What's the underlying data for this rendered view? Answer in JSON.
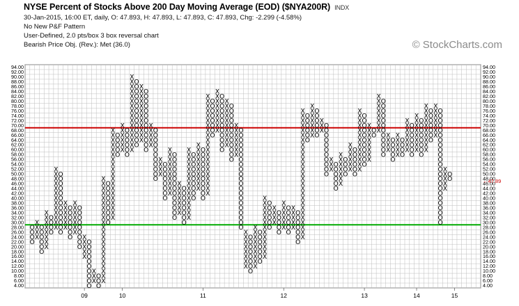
{
  "header": {
    "title": "NYSE Percent of Stocks Above 200 Day Moving Average (EOD) ($NYA200R)",
    "index_tag": "INDX",
    "quote_line": "30-Jan-2015, 16:00 ET, daily, O: 47.893, H: 47.893, L: 47.893, C: 47.893, Chg: -2.299 (-4.58%)",
    "pattern_line": "No New P&F Pattern",
    "scale_line": "User-Defined, 2.0 pts/box 3 box reversal chart",
    "objective_line": "Bearish Price Obj. (Rev.): Met (36.0)",
    "watermark": "© StockCharts.com"
  },
  "chart_data": {
    "type": "point-and-figure",
    "box_size": 2,
    "reversal": 3,
    "ylim": [
      4,
      94
    ],
    "y_ticks": [
      "4.00",
      "6.00",
      "8.00",
      "10.00",
      "12.00",
      "14.00",
      "16.00",
      "18.00",
      "20.00",
      "22.00",
      "24.00",
      "26.00",
      "28.00",
      "30.00",
      "32.00",
      "34.00",
      "36.00",
      "38.00",
      "40.00",
      "42.00",
      "44.00",
      "46.00",
      "48.00",
      "50.00",
      "52.00",
      "54.00",
      "56.00",
      "58.00",
      "60.00",
      "62.00",
      "64.00",
      "66.00",
      "68.00",
      "70.00",
      "72.00",
      "74.00",
      "76.00",
      "78.00",
      "80.00",
      "82.00",
      "84.00",
      "86.00",
      "88.00",
      "90.00",
      "92.00",
      "94.00"
    ],
    "x_tick_labels": [
      {
        "label": "09",
        "column": 11
      },
      {
        "label": "10",
        "column": 19
      },
      {
        "label": "11",
        "column": 36
      },
      {
        "label": "12",
        "column": 53
      },
      {
        "label": "13",
        "column": 70
      },
      {
        "label": "14",
        "column": 81
      },
      {
        "label": "15",
        "column": 89
      }
    ],
    "last_value_label": "47.89",
    "reference_lines": [
      {
        "value": 69,
        "color": "#cc0000"
      },
      {
        "value": 29,
        "color": "#00aa00"
      }
    ],
    "columns": [
      {
        "type": "O",
        "high": 28,
        "low": 22
      },
      {
        "type": "X",
        "high": 30,
        "low": 24
      },
      {
        "type": "O",
        "high": 28,
        "low": 18
      },
      {
        "type": "X",
        "high": 34,
        "low": 20
      },
      {
        "type": "O",
        "high": 32,
        "low": 26
      },
      {
        "type": "X",
        "high": 52,
        "low": 28
      },
      {
        "type": "O",
        "high": 50,
        "low": 26
      },
      {
        "type": "X",
        "high": 38,
        "low": 28
      },
      {
        "type": "O",
        "high": 36,
        "low": 24
      },
      {
        "type": "X",
        "high": 38,
        "low": 26
      },
      {
        "type": "O",
        "high": 36,
        "low": 20
      },
      {
        "type": "X",
        "high": 24,
        "low": 16
      },
      {
        "type": "O",
        "high": 22,
        "low": 4
      },
      {
        "type": "X",
        "high": 10,
        "low": 6
      },
      {
        "type": "O",
        "high": 8,
        "low": 4
      },
      {
        "type": "X",
        "high": 48,
        "low": 6
      },
      {
        "type": "O",
        "high": 46,
        "low": 30
      },
      {
        "type": "X",
        "high": 68,
        "low": 32
      },
      {
        "type": "O",
        "high": 66,
        "low": 58
      },
      {
        "type": "X",
        "high": 70,
        "low": 60
      },
      {
        "type": "O",
        "high": 68,
        "low": 58
      },
      {
        "type": "X",
        "high": 90,
        "low": 60
      },
      {
        "type": "O",
        "high": 88,
        "low": 62
      },
      {
        "type": "X",
        "high": 86,
        "low": 64
      },
      {
        "type": "O",
        "high": 84,
        "low": 60
      },
      {
        "type": "X",
        "high": 70,
        "low": 62
      },
      {
        "type": "O",
        "high": 68,
        "low": 48
      },
      {
        "type": "X",
        "high": 56,
        "low": 50
      },
      {
        "type": "O",
        "high": 54,
        "low": 40
      },
      {
        "type": "X",
        "high": 60,
        "low": 42
      },
      {
        "type": "O",
        "high": 58,
        "low": 32
      },
      {
        "type": "X",
        "high": 46,
        "low": 34
      },
      {
        "type": "O",
        "high": 44,
        "low": 30
      },
      {
        "type": "X",
        "high": 60,
        "low": 32
      },
      {
        "type": "O",
        "high": 58,
        "low": 40
      },
      {
        "type": "X",
        "high": 62,
        "low": 44
      },
      {
        "type": "O",
        "high": 60,
        "low": 40
      },
      {
        "type": "X",
        "high": 82,
        "low": 42
      },
      {
        "type": "O",
        "high": 80,
        "low": 66
      },
      {
        "type": "X",
        "high": 84,
        "low": 68
      },
      {
        "type": "O",
        "high": 82,
        "low": 60
      },
      {
        "type": "X",
        "high": 80,
        "low": 62
      },
      {
        "type": "O",
        "high": 78,
        "low": 56
      },
      {
        "type": "X",
        "high": 70,
        "low": 58
      },
      {
        "type": "O",
        "high": 68,
        "low": 28
      },
      {
        "type": "X",
        "high": 26,
        "low": 12
      },
      {
        "type": "O",
        "high": 24,
        "low": 10
      },
      {
        "type": "X",
        "high": 28,
        "low": 12
      },
      {
        "type": "O",
        "high": 26,
        "low": 14
      },
      {
        "type": "X",
        "high": 40,
        "low": 16
      },
      {
        "type": "O",
        "high": 38,
        "low": 28
      },
      {
        "type": "X",
        "high": 36,
        "low": 30
      },
      {
        "type": "O",
        "high": 34,
        "low": 26
      },
      {
        "type": "X",
        "high": 38,
        "low": 28
      },
      {
        "type": "O",
        "high": 36,
        "low": 26
      },
      {
        "type": "X",
        "high": 36,
        "low": 28
      },
      {
        "type": "O",
        "high": 34,
        "low": 22
      },
      {
        "type": "X",
        "high": 76,
        "low": 24
      },
      {
        "type": "O",
        "high": 74,
        "low": 64
      },
      {
        "type": "X",
        "high": 78,
        "low": 66
      },
      {
        "type": "O",
        "high": 76,
        "low": 66
      },
      {
        "type": "X",
        "high": 72,
        "low": 68
      },
      {
        "type": "O",
        "high": 70,
        "low": 50
      },
      {
        "type": "X",
        "high": 56,
        "low": 52
      },
      {
        "type": "O",
        "high": 54,
        "low": 44
      },
      {
        "type": "X",
        "high": 58,
        "low": 46
      },
      {
        "type": "O",
        "high": 56,
        "low": 50
      },
      {
        "type": "X",
        "high": 62,
        "low": 52
      },
      {
        "type": "O",
        "high": 60,
        "low": 50
      },
      {
        "type": "X",
        "high": 76,
        "low": 52
      },
      {
        "type": "O",
        "high": 74,
        "low": 54
      },
      {
        "type": "X",
        "high": 70,
        "low": 56
      },
      {
        "type": "O",
        "high": 68,
        "low": 66
      },
      {
        "type": "X",
        "high": 82,
        "low": 68
      },
      {
        "type": "O",
        "high": 80,
        "low": 58
      },
      {
        "type": "X",
        "high": 66,
        "low": 60
      },
      {
        "type": "O",
        "high": 64,
        "low": 56
      },
      {
        "type": "X",
        "high": 66,
        "low": 58
      },
      {
        "type": "O",
        "high": 64,
        "low": 58
      },
      {
        "type": "X",
        "high": 72,
        "low": 60
      },
      {
        "type": "O",
        "high": 70,
        "low": 58
      },
      {
        "type": "X",
        "high": 74,
        "low": 60
      },
      {
        "type": "O",
        "high": 72,
        "low": 58
      },
      {
        "type": "X",
        "high": 78,
        "low": 60
      },
      {
        "type": "O",
        "high": 76,
        "low": 64
      },
      {
        "type": "X",
        "high": 78,
        "low": 66
      },
      {
        "type": "O",
        "high": 76,
        "low": 30
      },
      {
        "type": "X",
        "high": 52,
        "low": 44
      },
      {
        "type": "O",
        "high": 50,
        "low": 48
      }
    ]
  },
  "style": {
    "x_color": "#000000",
    "o_color": "#000000",
    "month_mark_color": "#cc0000",
    "grid_color": "#bdbdbd",
    "last_label_color": "#cc0000"
  }
}
